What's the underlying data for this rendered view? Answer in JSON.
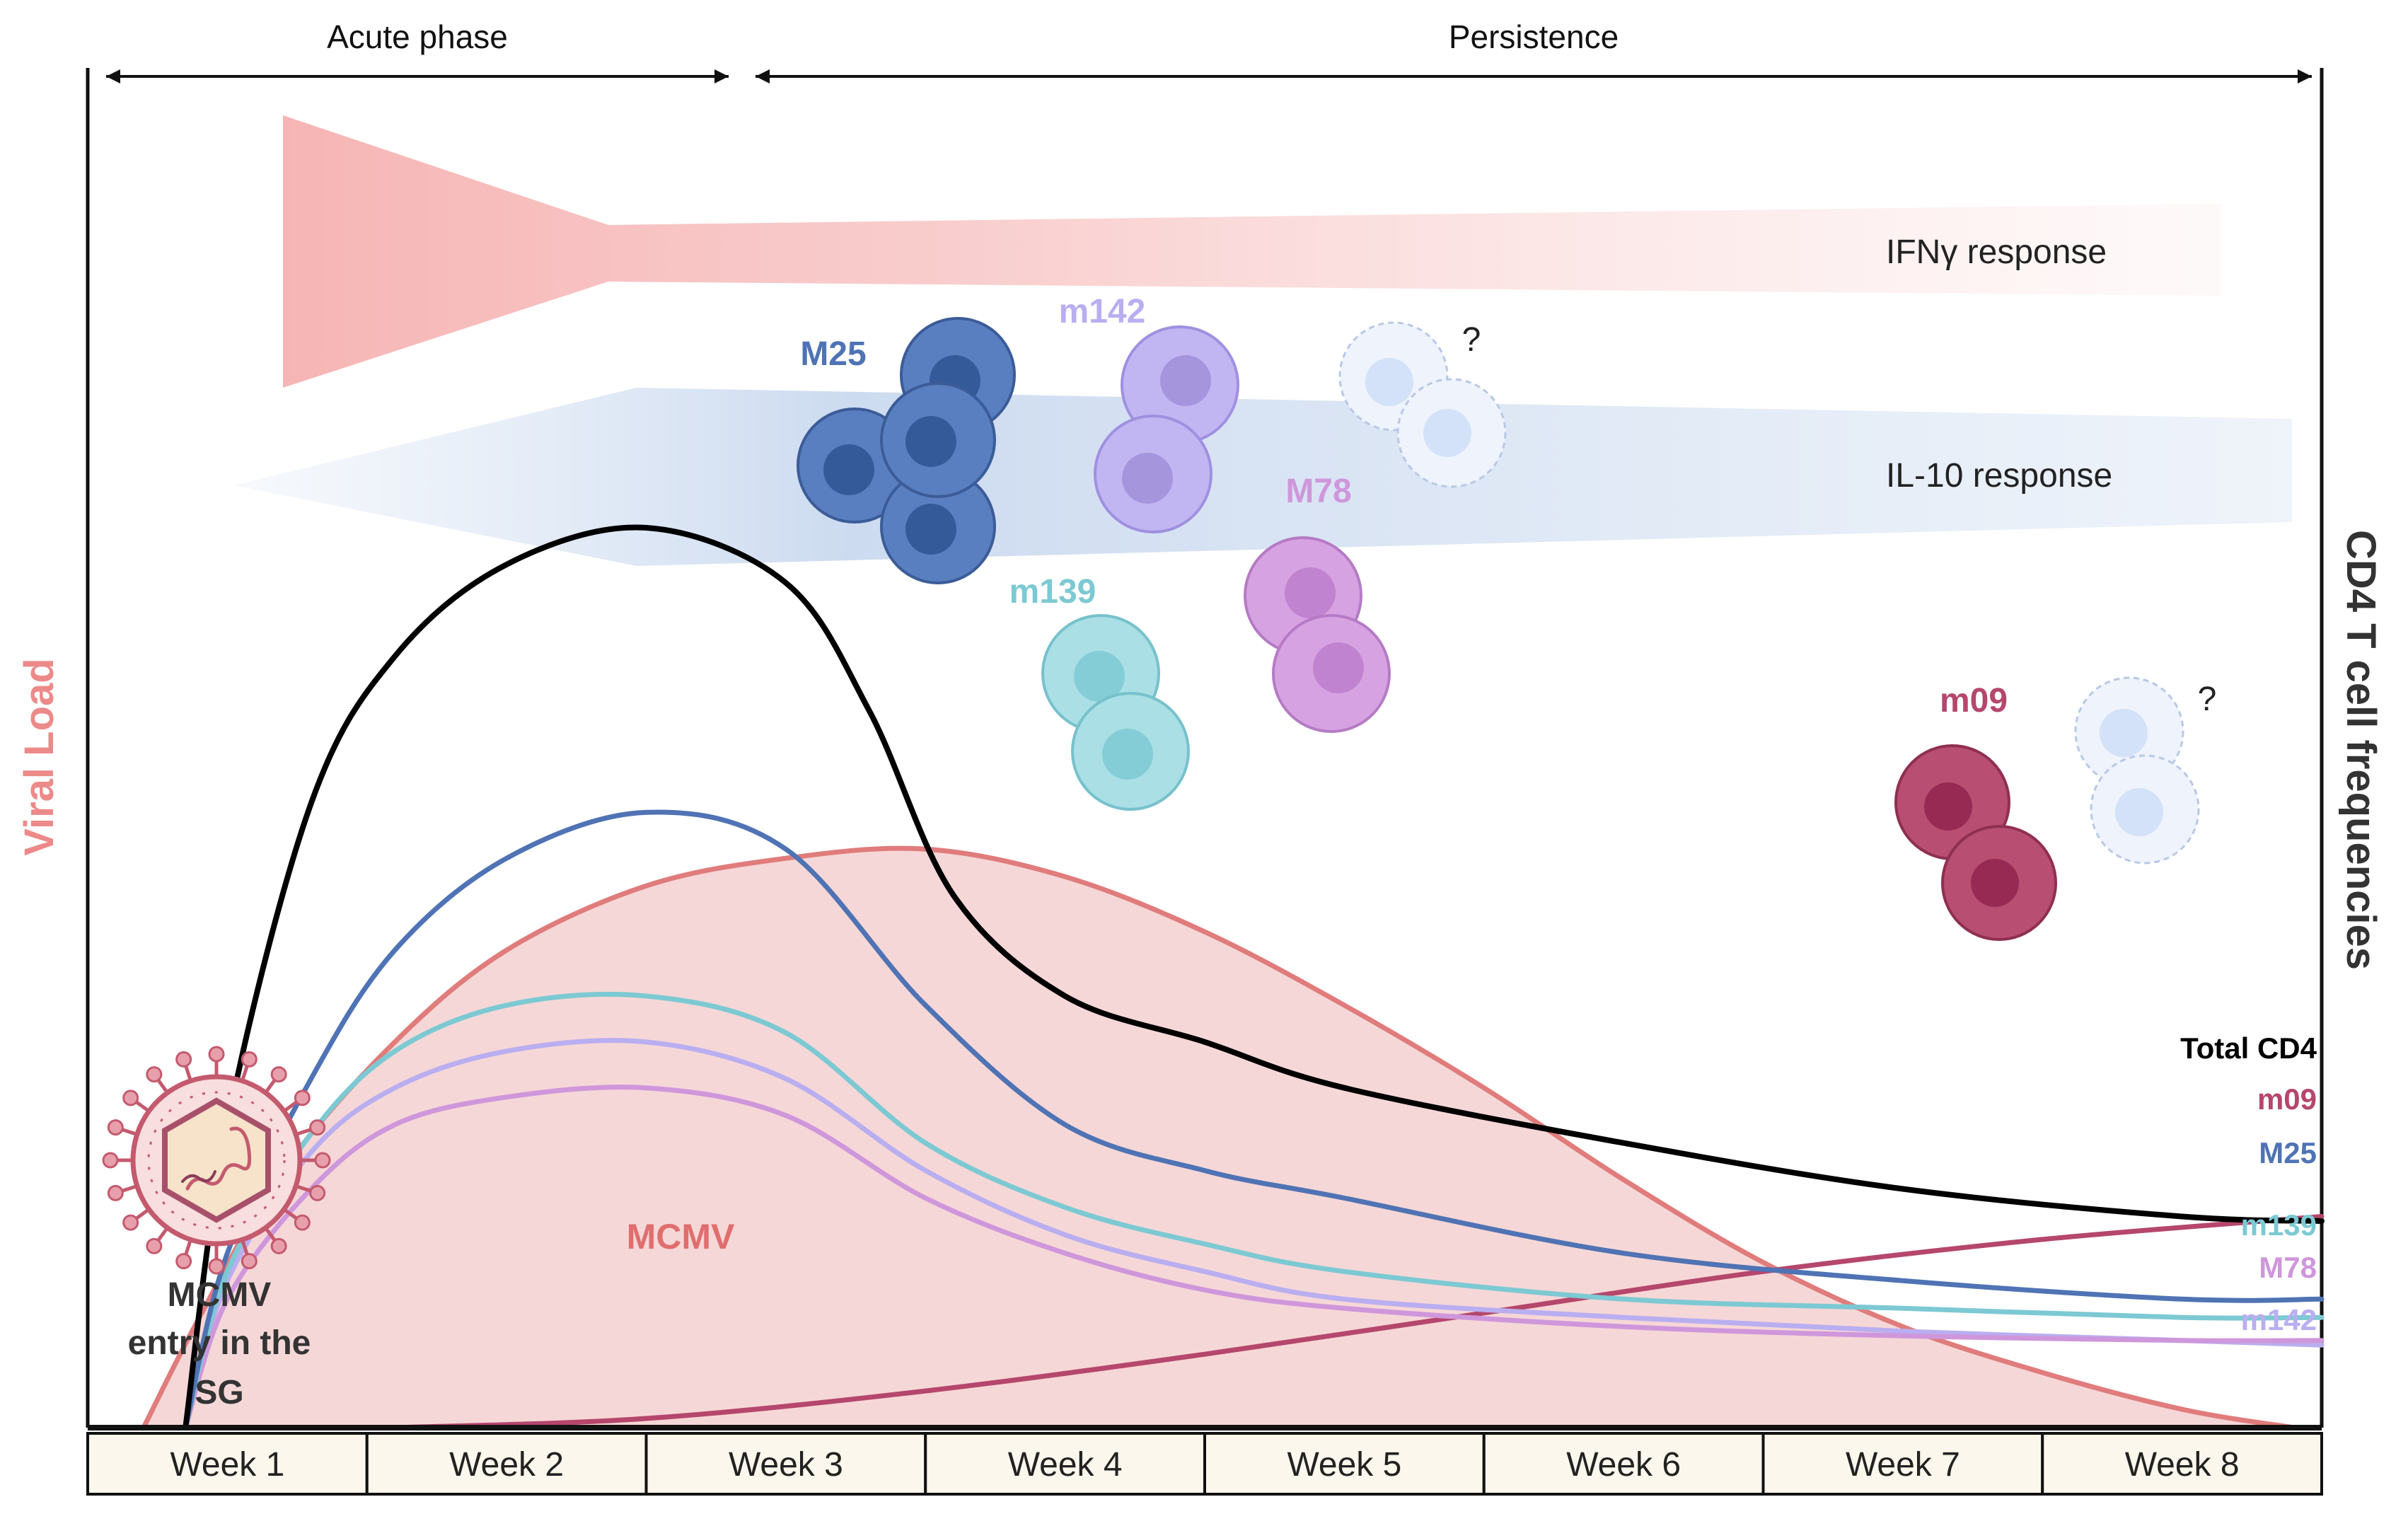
{
  "colors": {
    "total": "#000000",
    "m25": "#4f73b4",
    "m139": "#7cc9d3",
    "m78": "#cf97db",
    "m142": "#b9aef0",
    "m09": "#b5476c",
    "mcmv_line": "#e07c7c",
    "mcmv_fill": "#f5d3d3",
    "ifng": "#f7b8b8",
    "il10": "#c9d8ee",
    "unknown_cell": "#dce8fa",
    "week_bg": "#fbf7ec",
    "viral_load": "#ec8a8a"
  },
  "phases": {
    "acute": "Acute phase",
    "persistence": "Persistence"
  },
  "axes": {
    "left_label": "Viral Load",
    "right_label": "CD4 T cell frequencies"
  },
  "weeks": [
    "Week 1",
    "Week 2",
    "Week 3",
    "Week 4",
    "Week 5",
    "Week 6",
    "Week 7",
    "Week 8"
  ],
  "responses": {
    "ifng": "IFNγ response",
    "il10": "IL-10 response"
  },
  "virus": {
    "label_lines": [
      "MCMV",
      "entry in the",
      "SG"
    ],
    "area_label": "MCMV"
  },
  "cell_labels": {
    "M25": "M25",
    "m142": "m142",
    "M78": "M78",
    "m139": "m139",
    "m09": "m09",
    "question": "?"
  },
  "chart_data": {
    "type": "line",
    "x_unit": "Week",
    "xlim": [
      0.5,
      8.5
    ],
    "ylim": [
      0,
      100
    ],
    "yscale": "arbitrary (schematic)",
    "series": [
      {
        "key": "total",
        "name": "Total CD4",
        "x": [
          0.85,
          1.0,
          1.3,
          1.6,
          2.0,
          2.5,
          3.0,
          3.3,
          3.6,
          4.0,
          4.5,
          5.0,
          6.0,
          7.0,
          8.0,
          8.5
        ],
        "y": [
          0,
          33,
          68,
          84,
          94,
          98,
          92,
          78,
          58,
          47,
          42,
          37,
          31,
          26,
          23,
          22.5
        ]
      },
      {
        "key": "m25",
        "name": "M25",
        "x": [
          0.85,
          1.0,
          1.3,
          1.6,
          2.0,
          2.5,
          3.0,
          3.5,
          4.0,
          4.5,
          5.0,
          6.0,
          7.0,
          8.0,
          8.5
        ],
        "y": [
          0,
          19,
          38,
          52,
          62,
          67,
          63,
          46,
          33,
          28,
          25,
          19,
          16,
          14,
          14
        ]
      },
      {
        "key": "m139",
        "name": "m139",
        "x": [
          0.85,
          1.0,
          1.3,
          1.6,
          2.0,
          2.5,
          3.0,
          3.5,
          4.0,
          4.5,
          5.0,
          6.0,
          7.0,
          8.0,
          8.5
        ],
        "y": [
          0,
          17,
          32,
          41,
          46,
          47,
          43,
          31,
          24,
          20,
          17,
          14,
          13,
          12,
          12
        ]
      },
      {
        "key": "m78",
        "name": "M78",
        "x": [
          0.85,
          1.0,
          1.3,
          1.6,
          2.0,
          2.5,
          3.0,
          3.5,
          4.0,
          4.5,
          5.0,
          6.0,
          7.0,
          8.0,
          8.5
        ],
        "y": [
          0,
          14,
          26,
          33,
          36,
          37,
          34,
          25,
          19,
          15,
          13,
          11,
          10,
          9.5,
          9.5
        ]
      },
      {
        "key": "m142",
        "name": "m142",
        "x": [
          0.85,
          1.0,
          1.3,
          1.6,
          2.0,
          2.5,
          3.0,
          3.5,
          4.0,
          4.5,
          5.0,
          6.0,
          7.0,
          8.0,
          8.5
        ],
        "y": [
          0,
          16,
          30,
          37,
          41,
          42,
          38,
          28,
          21,
          17,
          14,
          12,
          10.5,
          9.5,
          9
        ]
      },
      {
        "key": "m09",
        "name": "m09",
        "x": [
          1.6,
          2.5,
          3.5,
          4.5,
          5.5,
          6.5,
          7.5,
          8.5
        ],
        "y": [
          0,
          1,
          4,
          8,
          12.5,
          17,
          20.5,
          23
        ]
      },
      {
        "key": "mcmv",
        "name": "MCMV",
        "x": [
          0.7,
          0.9,
          1.2,
          1.6,
          2.0,
          2.5,
          3.0,
          3.5,
          4.0,
          4.5,
          5.0,
          5.5,
          6.0,
          6.5,
          7.0,
          7.5,
          8.0,
          8.4
        ],
        "y": [
          0,
          12,
          28,
          42,
          52,
          59,
          62,
          63,
          60,
          54,
          46,
          37,
          27,
          18,
          11,
          6,
          2,
          0
        ]
      }
    ]
  }
}
